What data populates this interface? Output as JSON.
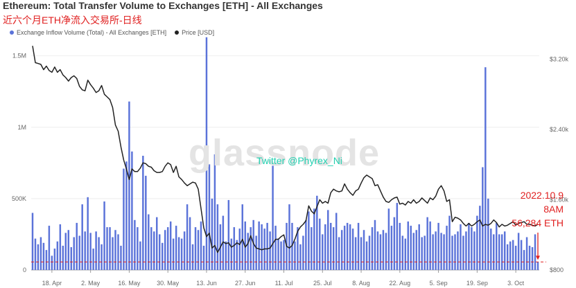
{
  "title": "Ethereum: Total Transfer Volume to Exchanges [ETH] - All Exchanges",
  "subtitle": "近六个月ETH净流入交易所-日线",
  "legend": {
    "inflow": "Exchange Inflow Volume (Total) - All Exchanges [ETH]",
    "price": "Price [USD]"
  },
  "watermark": "glassnode",
  "twitter": "Twitter @Phyrex_Ni",
  "annotation": {
    "date": "2022.10.9",
    "time": "8AM",
    "value": "56,284 ETH"
  },
  "colors": {
    "bars": "#5b73d9",
    "price": "#222222",
    "annotation": "#e02020"
  },
  "chart_data": {
    "type": "bar",
    "xlabel": "",
    "ylabel": "",
    "ylim": [
      0,
      1600000
    ],
    "y2lim": [
      800,
      3400
    ],
    "y_ticks": [
      {
        "v": 0,
        "label": "0"
      },
      {
        "v": 500000,
        "label": "500K"
      },
      {
        "v": 1000000,
        "label": "1M"
      },
      {
        "v": 1500000,
        "label": "1.5M"
      }
    ],
    "y2_ticks": [
      {
        "v": 800,
        "label": "$800"
      },
      {
        "v": 1600,
        "label": "$1.60k"
      },
      {
        "v": 2400,
        "label": "$2.40k"
      },
      {
        "v": 3200,
        "label": "$3.20k"
      }
    ],
    "x_ticks": [
      {
        "i": 7,
        "label": "18. Apr"
      },
      {
        "i": 21,
        "label": "2. May"
      },
      {
        "i": 35,
        "label": "16. May"
      },
      {
        "i": 49,
        "label": "30. May"
      },
      {
        "i": 63,
        "label": "13. Jun"
      },
      {
        "i": 77,
        "label": "27. Jun"
      },
      {
        "i": 91,
        "label": "11. Jul"
      },
      {
        "i": 105,
        "label": "25. Jul"
      },
      {
        "i": 119,
        "label": "8. Aug"
      },
      {
        "i": 133,
        "label": "22. Aug"
      },
      {
        "i": 147,
        "label": "5. Sep"
      },
      {
        "i": 161,
        "label": "19. Sep"
      },
      {
        "i": 175,
        "label": "3. Oct"
      }
    ],
    "series": [
      {
        "name": "Exchange Inflow Volume (Total) - All Exchanges [ETH]",
        "values": [
          400000,
          220000,
          180000,
          230000,
          190000,
          140000,
          310000,
          100000,
          150000,
          200000,
          320000,
          170000,
          260000,
          280000,
          160000,
          230000,
          330000,
          240000,
          460000,
          270000,
          510000,
          260000,
          150000,
          270000,
          230000,
          180000,
          480000,
          300000,
          300000,
          230000,
          280000,
          250000,
          170000,
          710000,
          760000,
          1180000,
          830000,
          350000,
          300000,
          200000,
          800000,
          660000,
          390000,
          300000,
          270000,
          370000,
          250000,
          190000,
          280000,
          300000,
          340000,
          220000,
          310000,
          230000,
          220000,
          270000,
          460000,
          370000,
          180000,
          300000,
          280000,
          340000,
          170000,
          1630000,
          740000,
          500000,
          810000,
          460000,
          320000,
          380000,
          200000,
          490000,
          220000,
          300000,
          210000,
          290000,
          460000,
          340000,
          260000,
          300000,
          350000,
          240000,
          340000,
          320000,
          290000,
          330000,
          270000,
          730000,
          310000,
          220000,
          200000,
          210000,
          330000,
          460000,
          330000,
          200000,
          300000,
          180000,
          240000,
          350000,
          410000,
          300000,
          430000,
          520000,
          360000,
          250000,
          320000,
          420000,
          330000,
          300000,
          400000,
          230000,
          280000,
          310000,
          330000,
          320000,
          290000,
          230000,
          330000,
          230000,
          280000,
          200000,
          240000,
          300000,
          350000,
          270000,
          250000,
          280000,
          260000,
          430000,
          310000,
          370000,
          470000,
          330000,
          240000,
          220000,
          340000,
          310000,
          260000,
          280000,
          320000,
          230000,
          240000,
          370000,
          340000,
          250000,
          270000,
          330000,
          260000,
          250000,
          310000,
          380000,
          240000,
          250000,
          270000,
          320000,
          240000,
          270000,
          330000,
          300000,
          270000,
          380000,
          450000,
          720000,
          1420000,
          500000,
          290000,
          250000,
          330000,
          250000,
          250000,
          270000,
          180000,
          200000,
          210000,
          170000,
          260000,
          210000,
          140000,
          230000,
          170000,
          160000,
          250000,
          56284
        ]
      },
      {
        "name": "Price [USD]",
        "values": [
          3350,
          3160,
          3150,
          3140,
          3080,
          3120,
          3070,
          3050,
          3110,
          3050,
          3080,
          3020,
          2990,
          2950,
          2990,
          3010,
          2980,
          2890,
          2850,
          2840,
          2960,
          2910,
          2870,
          2820,
          2840,
          2900,
          2800,
          2770,
          2740,
          2650,
          2450,
          2380,
          2200,
          2050,
          1950,
          1830,
          1950,
          1920,
          1920,
          1960,
          2020,
          2010,
          1980,
          1970,
          1930,
          1910,
          1910,
          1920,
          1980,
          2020,
          2000,
          1910,
          1980,
          1860,
          1830,
          1790,
          1760,
          1780,
          1800,
          1790,
          1720,
          1500,
          1280,
          1180,
          1220,
          1050,
          1080,
          1000,
          1060,
          1120,
          1100,
          1110,
          1060,
          1080,
          1110,
          1090,
          1150,
          1060,
          1100,
          1190,
          1100,
          1050,
          1040,
          1030,
          1040,
          1040,
          1050,
          1100,
          1150,
          1150,
          1180,
          1200,
          1070,
          1050,
          1080,
          1150,
          1240,
          1290,
          1320,
          1360,
          1530,
          1470,
          1440,
          1520,
          1600,
          1560,
          1580,
          1560,
          1680,
          1720,
          1700,
          1690,
          1700,
          1780,
          1720,
          1680,
          1650,
          1700,
          1720,
          1790,
          1850,
          1880,
          1860,
          1840,
          1760,
          1770,
          1700,
          1630,
          1580,
          1570,
          1600,
          1620,
          1630,
          1550,
          1560,
          1540,
          1580,
          1560,
          1600,
          1560,
          1580,
          1620,
          1590,
          1560,
          1620,
          1600,
          1640,
          1720,
          1760,
          1700,
          1580,
          1600,
          1350,
          1400,
          1390,
          1370,
          1330,
          1300,
          1330,
          1300,
          1320,
          1350,
          1370,
          1300,
          1320,
          1310,
          1330,
          1370,
          1340,
          1290,
          1320,
          1300,
          1310,
          1330,
          1350,
          1310,
          1330,
          1340,
          1350,
          1320,
          1320,
          1310,
          1300,
          1320
        ]
      }
    ]
  }
}
